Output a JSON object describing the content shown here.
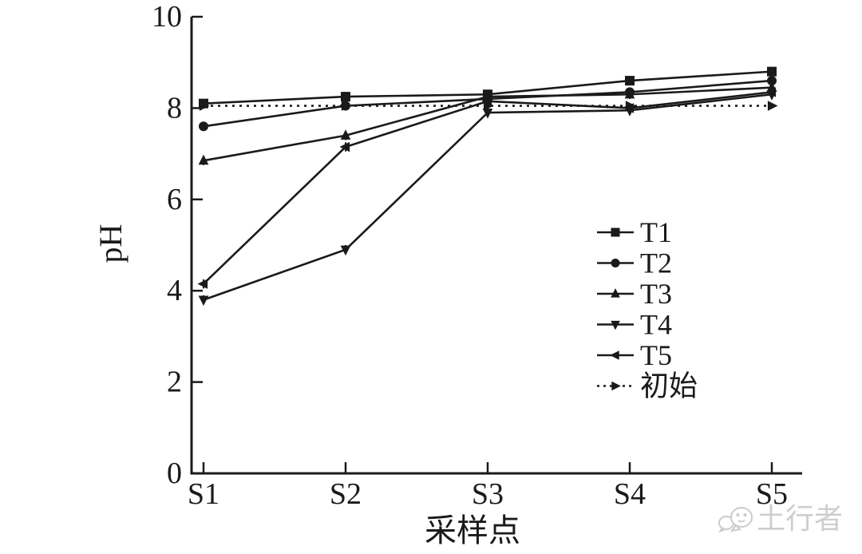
{
  "chart_data": {
    "type": "line",
    "title": "",
    "xlabel": "采样点",
    "ylabel": "pH",
    "categories": [
      "S1",
      "S2",
      "S3",
      "S4",
      "S5"
    ],
    "ylim": [
      0,
      10
    ],
    "yticks": [
      0,
      2,
      4,
      6,
      8,
      10
    ],
    "grid": false,
    "legend_position": "right-middle",
    "line_color": "#1a1a1a",
    "error_bar": 0.1,
    "series": [
      {
        "name": "T1",
        "marker": "square",
        "line": "solid",
        "values": [
          8.1,
          8.25,
          8.3,
          8.6,
          8.8
        ]
      },
      {
        "name": "T2",
        "marker": "circle",
        "line": "solid",
        "values": [
          7.6,
          8.05,
          8.2,
          8.35,
          8.6
        ]
      },
      {
        "name": "T3",
        "marker": "triangle-up",
        "line": "solid",
        "values": [
          6.85,
          7.4,
          8.25,
          8.3,
          8.45
        ]
      },
      {
        "name": "T4",
        "marker": "triangle-down",
        "line": "solid",
        "values": [
          3.8,
          4.9,
          7.9,
          7.95,
          8.3
        ]
      },
      {
        "name": "T5",
        "marker": "triangle-left",
        "line": "solid",
        "values": [
          4.15,
          7.15,
          8.15,
          8.0,
          8.35
        ]
      },
      {
        "name": "初始",
        "marker": "triangle-right",
        "line": "dashed",
        "values": [
          8.05,
          8.05,
          8.05,
          8.05,
          8.05
        ]
      }
    ]
  },
  "watermark": {
    "text": "土行者",
    "icon": "wechat-bubbles-icon",
    "color": "#c9c9c9"
  }
}
